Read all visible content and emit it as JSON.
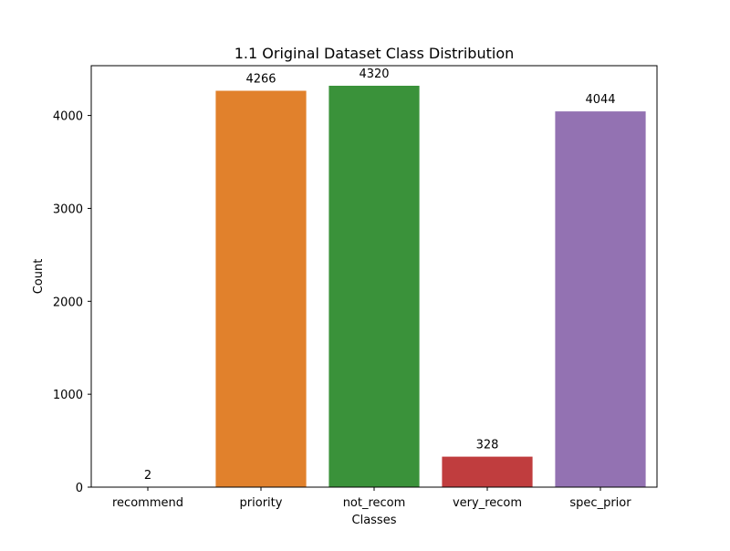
{
  "chart_data": {
    "type": "bar",
    "title": "1.1 Original Dataset Class Distribution",
    "xlabel": "Classes",
    "ylabel": "Count",
    "categories": [
      "recommend",
      "priority",
      "not_recom",
      "very_recom",
      "spec_prior"
    ],
    "values": [
      2,
      4266,
      4320,
      328,
      4044
    ],
    "data_labels": [
      "2",
      "4266",
      "4320",
      "328",
      "4044"
    ],
    "colors": [
      "#3a75ae",
      "#e1812c",
      "#3a923a",
      "#c03d3e",
      "#9372b2"
    ],
    "y_ticks": [
      0,
      1000,
      2000,
      3000,
      4000
    ],
    "y_tick_labels": [
      "0",
      "1000",
      "2000",
      "3000",
      "4000"
    ],
    "ylim": [
      0,
      4536
    ],
    "grid": false,
    "legend": "none"
  }
}
